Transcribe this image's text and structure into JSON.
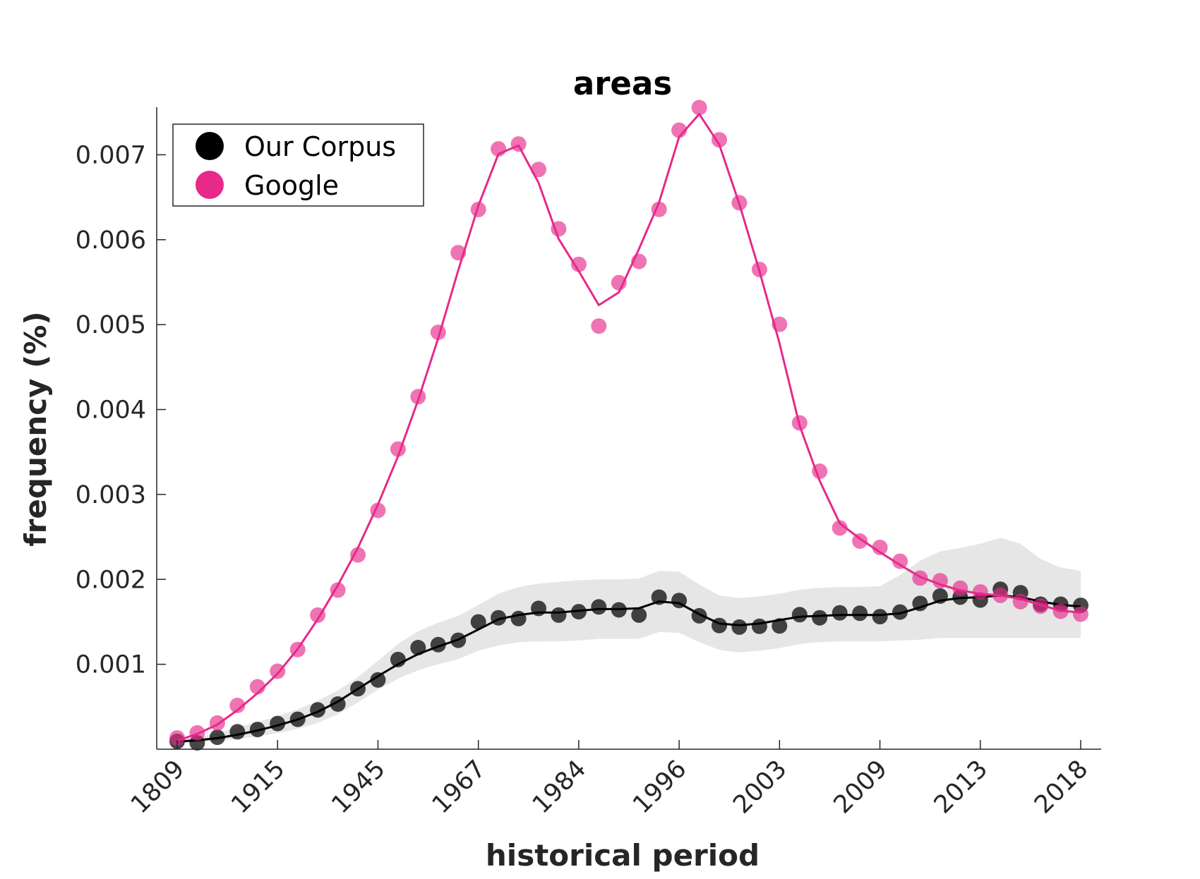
{
  "chart_data": {
    "type": "line",
    "title": "areas",
    "xlabel": "historical period",
    "ylabel": "frequency (%)",
    "x_tick_labels": [
      "1809",
      "1915",
      "1945",
      "1967",
      "1984",
      "1996",
      "2003",
      "2009",
      "2013",
      "2018"
    ],
    "y_tick_labels": [
      "0.001",
      "0.002",
      "0.003",
      "0.004",
      "0.005",
      "0.006",
      "0.007"
    ],
    "ylim": [
      0,
      0.00756
    ],
    "legend_position": "top-left",
    "grid": false,
    "series": [
      {
        "name": "Our Corpus",
        "color": "#000000",
        "points": [
          9.2e-05,
          7.5e-05,
          0.00014,
          0.000205,
          0.000232,
          0.000302,
          0.000352,
          0.000463,
          0.000532,
          0.000712,
          0.000816,
          0.001056,
          0.001196,
          0.001231,
          0.001283,
          0.001499,
          0.001548,
          0.001539,
          0.001658,
          0.001579,
          0.001619,
          0.001676,
          0.001641,
          0.001579,
          0.00179,
          0.001751,
          0.001571,
          0.001456,
          0.001438,
          0.001447,
          0.001451,
          0.001584,
          0.001548,
          0.001606,
          0.001601,
          0.001561,
          0.001615,
          0.001716,
          0.001804,
          0.001791,
          0.001756,
          0.001883,
          0.001843,
          0.001707,
          0.001707,
          0.001694
        ],
        "smoothed": [
          9e-05,
          0.000105,
          0.00013,
          0.00017,
          0.00022,
          0.00028,
          0.00035,
          0.00044,
          0.00056,
          0.00071,
          0.00086,
          0.001,
          0.00112,
          0.00121,
          0.00129,
          0.00141,
          0.00153,
          0.00158,
          0.00161,
          0.00161,
          0.00163,
          0.00165,
          0.00165,
          0.00166,
          0.00174,
          0.00172,
          0.00159,
          0.00148,
          0.00146,
          0.00148,
          0.00152,
          0.00156,
          0.00157,
          0.00158,
          0.00158,
          0.00158,
          0.0016,
          0.00167,
          0.00175,
          0.00178,
          0.00179,
          0.00181,
          0.00179,
          0.00174,
          0.0017,
          0.00168
        ],
        "band_upper": [
          0.00012,
          0.00014,
          0.00019,
          0.00026,
          0.00032,
          0.00039,
          0.00047,
          0.00057,
          0.00069,
          0.00085,
          0.00104,
          0.00124,
          0.00139,
          0.00149,
          0.00157,
          0.0017,
          0.00183,
          0.00191,
          0.00195,
          0.00197,
          0.00199,
          0.002,
          0.002,
          0.00201,
          0.0021,
          0.00209,
          0.00194,
          0.00181,
          0.00178,
          0.0018,
          0.00183,
          0.00188,
          0.0019,
          0.00191,
          0.00191,
          0.00192,
          0.00205,
          0.00222,
          0.00233,
          0.00237,
          0.00242,
          0.00249,
          0.00242,
          0.00224,
          0.00214,
          0.0021
        ],
        "band_lower": [
          7e-05,
          8e-05,
          0.0001,
          0.00012,
          0.00015,
          0.00019,
          0.00024,
          0.00031,
          0.00041,
          0.00055,
          0.0007,
          0.00083,
          0.00093,
          0.001,
          0.00106,
          0.00116,
          0.00122,
          0.00126,
          0.00127,
          0.00127,
          0.00128,
          0.0013,
          0.0013,
          0.0013,
          0.00138,
          0.00137,
          0.00126,
          0.00117,
          0.00114,
          0.00116,
          0.00119,
          0.00124,
          0.00126,
          0.00127,
          0.00127,
          0.00127,
          0.00128,
          0.00129,
          0.00131,
          0.00131,
          0.00131,
          0.00131,
          0.00131,
          0.00131,
          0.00131,
          0.00131
        ]
      },
      {
        "name": "Google",
        "color": "#e7298a",
        "points": [
          0.000132,
          0.000192,
          0.000308,
          0.000515,
          0.000735,
          0.000918,
          0.001174,
          0.001579,
          0.001874,
          0.002288,
          0.002812,
          0.003534,
          0.004151,
          0.004909,
          0.005847,
          0.006356,
          0.007069,
          0.007127,
          0.006827,
          0.006128,
          0.00571,
          0.004983,
          0.005494,
          0.005744,
          0.006358,
          0.007289,
          0.007556,
          0.007176,
          0.006435,
          0.005649,
          0.005004,
          0.003842,
          0.003273,
          0.002605,
          0.002451,
          0.002376,
          0.002213,
          0.002015,
          0.001984,
          0.001896,
          0.001852,
          0.001812,
          0.001738,
          0.001685,
          0.001624,
          0.00159
        ],
        "smoothed": [
          0.0001,
          0.00018,
          0.00029,
          0.00046,
          0.00066,
          0.00089,
          0.00118,
          0.00153,
          0.00193,
          0.00237,
          0.00288,
          0.00345,
          0.00411,
          0.00484,
          0.00564,
          0.0064,
          0.00701,
          0.00711,
          0.00667,
          0.00601,
          0.00563,
          0.00523,
          0.00538,
          0.00589,
          0.00644,
          0.00721,
          0.00748,
          0.00712,
          0.00642,
          0.00563,
          0.00478,
          0.00381,
          0.00316,
          0.00266,
          0.00248,
          0.00232,
          0.00217,
          0.00203,
          0.00194,
          0.00187,
          0.00183,
          0.00181,
          0.00177,
          0.0017,
          0.00163,
          0.00161
        ]
      }
    ]
  }
}
